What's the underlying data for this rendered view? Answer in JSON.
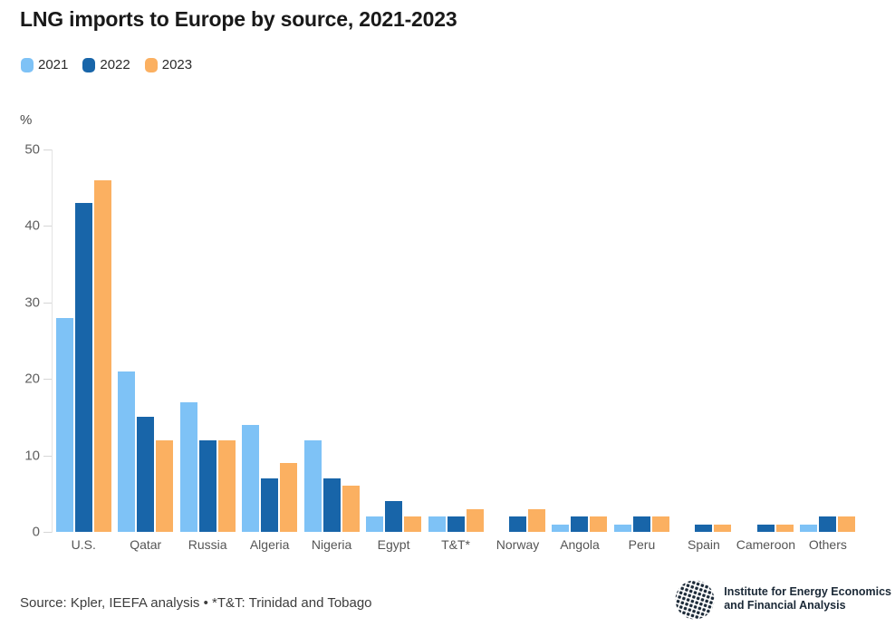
{
  "chart_data": {
    "type": "bar",
    "title": "LNG imports to Europe by source, 2021-2023",
    "ylabel": "%",
    "xlabel": "",
    "ylim": [
      0,
      50
    ],
    "yticks": [
      0,
      10,
      20,
      30,
      40,
      50
    ],
    "grid": false,
    "legend_position": "top-left",
    "categories": [
      "U.S.",
      "Qatar",
      "Russia",
      "Algeria",
      "Nigeria",
      "Egypt",
      "T&T*",
      "Norway",
      "Angola",
      "Peru",
      "Spain",
      "Cameroon",
      "Others"
    ],
    "series": [
      {
        "name": "2021",
        "color": "#7EC2F6",
        "values": [
          28,
          21,
          17,
          14,
          12,
          2,
          2,
          0,
          1,
          1,
          0,
          0,
          1
        ]
      },
      {
        "name": "2022",
        "color": "#1865A9",
        "values": [
          43,
          15,
          12,
          7,
          7,
          4,
          2,
          2,
          2,
          2,
          1,
          1,
          2
        ]
      },
      {
        "name": "2023",
        "color": "#FBB061",
        "values": [
          46,
          12,
          12,
          9,
          6,
          2,
          3,
          3,
          2,
          2,
          1,
          1,
          2
        ]
      }
    ]
  },
  "footer": {
    "source": "Source: Kpler, IEEFA analysis • *T&T: Trinidad and Tobago",
    "logo": {
      "line1": "Institute for Energy Economics",
      "line2": "and Financial Analysis",
      "color": "#1A2836",
      "icon": "globe-icon"
    }
  }
}
